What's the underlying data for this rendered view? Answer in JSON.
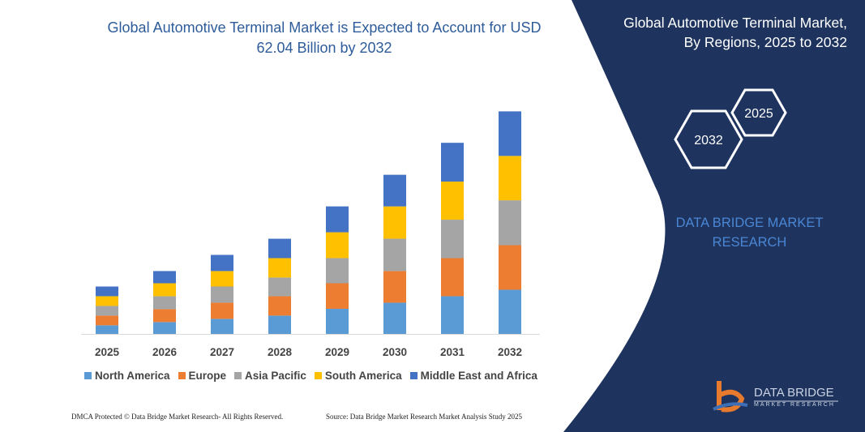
{
  "header": {
    "title_line1": "Global Automotive Terminal Market is Expected to Account for USD",
    "title_line2": "62.04 Billion by 2032"
  },
  "panel": {
    "title_line1": "Global Automotive Terminal Market,",
    "title_line2": "By Regions, 2025 to 2032",
    "hex_start": "2025",
    "hex_end": "2032",
    "brand_line1": "DATA BRIDGE MARKET",
    "brand_line2": "RESEARCH",
    "logo_line1": "DATA BRIDGE",
    "logo_line2": "MARKET RESEARCH"
  },
  "footer": {
    "left": "DMCA Protected © Data Bridge Market Research- All Rights Reserved.",
    "right": "Source: Data Bridge Market Research  Market Analysis Study 2025"
  },
  "colors": {
    "panel": "#1e345e",
    "title": "#2e5c9a"
  },
  "chart_data": {
    "type": "bar",
    "stacked": true,
    "title": "Global Automotive Terminal Market is Expected to Account for USD 62.04 Billion by 2032",
    "categories": [
      "2025",
      "2026",
      "2027",
      "2028",
      "2029",
      "2030",
      "2031",
      "2032"
    ],
    "legend_position": "bottom",
    "grid": false,
    "series": [
      {
        "name": "North America",
        "color": "#5b9bd5",
        "values": [
          2.4,
          3.3,
          4.2,
          5.1,
          7.0,
          8.7,
          10.5,
          12.3
        ]
      },
      {
        "name": "Europe",
        "color": "#ed7d31",
        "values": [
          2.7,
          3.6,
          4.5,
          5.4,
          7.1,
          8.8,
          10.6,
          12.4
        ]
      },
      {
        "name": "Asia Pacific",
        "color": "#a5a5a5",
        "values": [
          2.7,
          3.6,
          4.5,
          5.2,
          7.0,
          9.0,
          10.7,
          12.5
        ]
      },
      {
        "name": "South America",
        "color": "#ffc000",
        "values": [
          2.7,
          3.6,
          4.3,
          5.4,
          7.2,
          9.0,
          10.6,
          12.35
        ]
      },
      {
        "name": "Middle East and Africa",
        "color": "#4472c4",
        "values": [
          2.7,
          3.4,
          4.5,
          5.4,
          7.2,
          8.8,
          10.8,
          12.4
        ]
      }
    ]
  }
}
